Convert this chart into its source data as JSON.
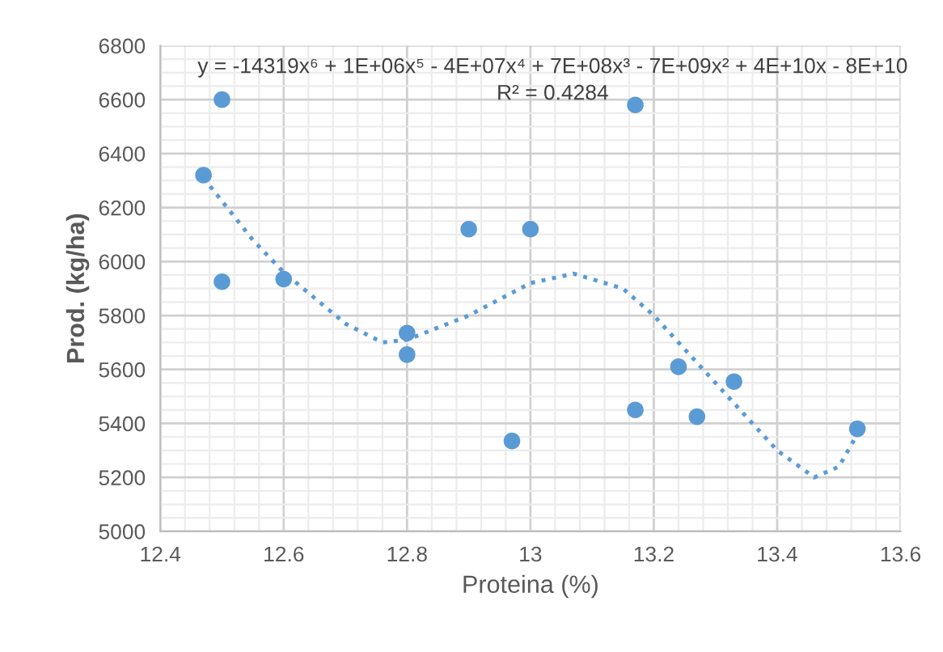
{
  "chart_data": {
    "type": "scatter",
    "xlabel": "Proteina (%)",
    "ylabel": "Prod. (kg/ha)",
    "xlim": [
      12.4,
      13.6
    ],
    "xticks": [
      12.4,
      12.6,
      12.8,
      13,
      13.2,
      13.4,
      13.6
    ],
    "ylim": [
      5000,
      6800
    ],
    "yticks": [
      5000,
      5200,
      5400,
      5600,
      5800,
      6000,
      6200,
      6400,
      6600,
      6800
    ],
    "grid": true,
    "marker": "circle",
    "legend": false,
    "annotations": [
      "y = -14319x⁶ + 1E+06x⁵ - 4E+07x⁴ + 7E+08x³ - 7E+09x² + 4E+10x - 8E+10",
      "R² = 0.4284"
    ],
    "series": [
      {
        "color": "#5b9bd5",
        "x": [
          12.47,
          12.5,
          12.5,
          12.6,
          12.8,
          12.8,
          12.9,
          12.97,
          13.0,
          13.17,
          13.17,
          13.24,
          13.27,
          13.33,
          13.53
        ],
        "values": [
          6320,
          6600,
          5925,
          5935,
          5735,
          5655,
          6120,
          5335,
          6120,
          6580,
          5450,
          5610,
          5425,
          5555,
          5380
        ]
      },
      {
        "type": "line",
        "color": "#5b9bd5",
        "line_style": "dotted",
        "marker": "none",
        "x": [
          12.47,
          12.55,
          12.6,
          12.7,
          12.76,
          12.8,
          12.9,
          13.0,
          13.07,
          13.15,
          13.2,
          13.3,
          13.4,
          13.46,
          13.5,
          13.53
        ],
        "values": [
          6310,
          6080,
          5960,
          5770,
          5700,
          5710,
          5800,
          5920,
          5955,
          5900,
          5800,
          5550,
          5300,
          5200,
          5240,
          5360
        ]
      }
    ]
  }
}
